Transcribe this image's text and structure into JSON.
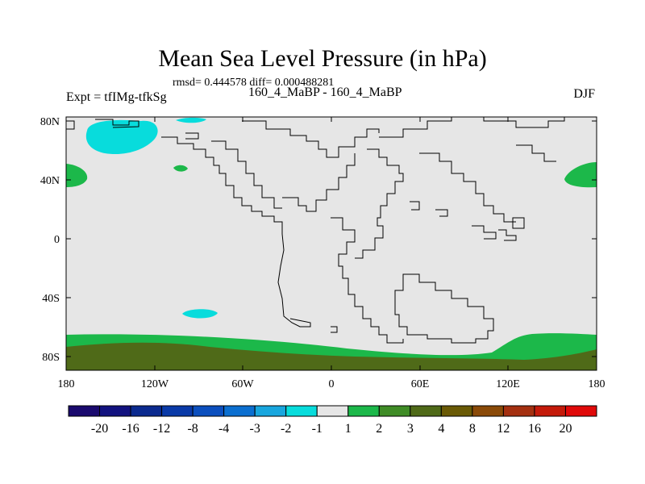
{
  "header": {
    "title": "Mean Sea Level Pressure (in hPa)",
    "stats": "rmsd= 0.444578 diff= 0.000488281",
    "experiment": "Expt = tfIMg-tfkSg",
    "periods": "160_4_MaBP - 160_4_MaBP",
    "season": "DJF"
  },
  "axes": {
    "y_ticks": [
      "80N",
      "40N",
      "0",
      "40S",
      "80S"
    ],
    "x_ticks": [
      "180",
      "120W",
      "60W",
      "0",
      "60E",
      "120E",
      "180"
    ]
  },
  "colorbar": {
    "labels": [
      "-20",
      "-16",
      "-12",
      "-8",
      "-4",
      "-3",
      "-2",
      "-1",
      "1",
      "2",
      "3",
      "4",
      "8",
      "12",
      "16",
      "20"
    ],
    "colors": [
      "#1a0a6e",
      "#12127f",
      "#0b2a8f",
      "#0a3aa8",
      "#0c4fbe",
      "#0b6fd0",
      "#18a6de",
      "#08dcdc",
      "#e6e6e6",
      "#1cb84a",
      "#3f8c26",
      "#4f6a18",
      "#6a5a06",
      "#8a4a08",
      "#a43010",
      "#c41a0a",
      "#e00a0a"
    ]
  },
  "colors": {
    "background": "#e6e6e6",
    "neg_anomaly": "#08dcdc",
    "pos_anomaly_1_2": "#1cb84a",
    "pos_anomaly_3_4": "#4f6a18",
    "coastline": "#000000"
  }
}
